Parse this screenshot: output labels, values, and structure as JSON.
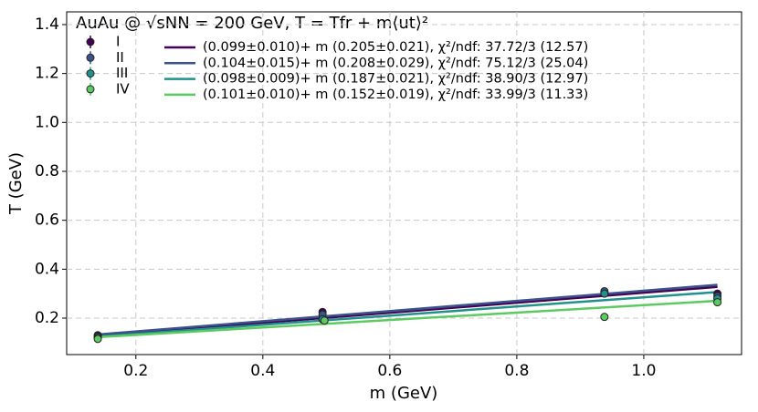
{
  "chart_data": {
    "type": "scatter",
    "title": "AuAu @ √sNN = 200 GeV, T = Tfr + m⟨ut⟩²",
    "x_label": "m (GeV)",
    "y_label": "T (GeV)",
    "xlim": [
      0.091,
      1.154
    ],
    "ylim": [
      0.051,
      1.452
    ],
    "xticks": [
      0.2,
      0.4,
      0.6,
      0.8,
      {
        "value": 1,
        "label": "1.0"
      }
    ],
    "yticks": [
      0.2,
      0.4,
      0.6,
      0.8,
      {
        "value": 1,
        "label": "1.0"
      },
      1.2,
      1.4
    ],
    "grid": true,
    "series": [
      {
        "name": "I",
        "color": "#440154",
        "x": [
          0.14,
          0.494,
          0.938,
          1.116
        ],
        "values": [
          0.13,
          0.225,
          0.305,
          0.3
        ]
      },
      {
        "name": "II",
        "color": "#3b528b",
        "x": [
          0.14,
          0.494,
          0.938,
          1.116
        ],
        "values": [
          0.125,
          0.215,
          0.31,
          0.29
        ]
      },
      {
        "name": "III",
        "color": "#21918c",
        "x": [
          0.14,
          0.494,
          0.938,
          1.116
        ],
        "values": [
          0.12,
          0.195,
          0.3,
          0.28
        ]
      },
      {
        "name": "IV",
        "color": "#5ec962",
        "x": [
          0.14,
          0.497,
          0.938,
          1.116
        ],
        "values": [
          0.115,
          0.19,
          0.205,
          0.265
        ]
      }
    ],
    "fits": [
      {
        "name": "(0.099±0.010)+ m (0.205±0.021),  χ²/ndf: 37.72/3 (12.57)",
        "color": "#440154",
        "intercept": 0.099,
        "slope": 0.205
      },
      {
        "name": "(0.104±0.015)+ m (0.208±0.029),  χ²/ndf: 75.12/3 (25.04)",
        "color": "#3b528b",
        "intercept": 0.104,
        "slope": 0.208
      },
      {
        "name": "(0.098±0.009)+ m (0.187±0.021),  χ²/ndf: 38.90/3 (12.97)",
        "color": "#21918c",
        "intercept": 0.098,
        "slope": 0.187
      },
      {
        "name": "(0.101±0.010)+ m (0.152±0.019),  χ²/ndf: 33.99/3 (11.33)",
        "color": "#5ec962",
        "intercept": 0.101,
        "slope": 0.152
      }
    ]
  }
}
